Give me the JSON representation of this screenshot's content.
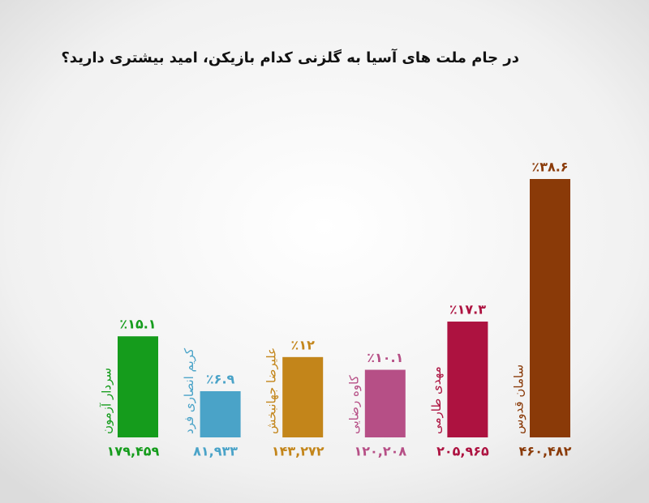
{
  "chart_data": {
    "type": "bar",
    "title": "در جام ملت های آسیا به گلزنی کدام بازیکن، امید بیشتری دارید؟",
    "categories": [
      "سردار آزمون",
      "کریم انصاری فرد",
      "علیرضا جهانبخش",
      "کاوه رضایی",
      "مهدی طارمی",
      "سامان قدوس"
    ],
    "values": [
      15.1,
      6.9,
      12,
      10.1,
      17.3,
      38.6
    ],
    "value_labels": [
      "٪۱۵.۱",
      "٪۶.۹",
      "٪۱۲",
      "٪۱۰.۱",
      "٪۱۷.۳",
      "٪۳۸.۶"
    ],
    "counts": [
      "۱۷۹,۴۵۹",
      "۸۱,۹۳۳",
      "۱۴۳,۲۷۲",
      "۱۲۰,۲۰۸",
      "۲۰۵,۹۶۵",
      "۴۶۰,۴۸۲"
    ],
    "colors": [
      "#159c1c",
      "#4aa3c8",
      "#c3851a",
      "#b64f86",
      "#ad1240",
      "#8a3a08"
    ]
  }
}
